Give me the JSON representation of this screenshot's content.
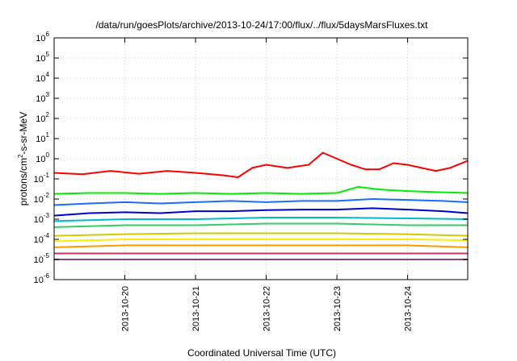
{
  "chart_data": {
    "type": "line",
    "title": "/data/run/goesPlots/archive/2013-10-24/17:00/flux/../flux/5daysMarsFluxes.txt",
    "xlabel": "Coordinated Universal Time (UTC)",
    "ylabel_parts": [
      "protons/cm",
      "2",
      "-s-sr-MeV"
    ],
    "yscale": "log",
    "ylim": [
      1e-06,
      1000000.0
    ],
    "xlim": [
      0.0,
      5.85
    ],
    "x_ticks": [
      {
        "x": 1.0,
        "label": "2013-10-20"
      },
      {
        "x": 2.0,
        "label": "2013-10-21"
      },
      {
        "x": 3.0,
        "label": "2013-10-22"
      },
      {
        "x": 4.0,
        "label": "2013-10-23"
      },
      {
        "x": 5.0,
        "label": "2013-10-24"
      }
    ],
    "y_ticks": [
      {
        "exp": -6,
        "base": "10",
        "sup": "-6"
      },
      {
        "exp": -5,
        "base": "10",
        "sup": "-5"
      },
      {
        "exp": -4,
        "base": "10",
        "sup": "-4"
      },
      {
        "exp": -3,
        "base": "10",
        "sup": "-3"
      },
      {
        "exp": -2,
        "base": "10",
        "sup": "-2"
      },
      {
        "exp": -1,
        "base": "10",
        "sup": "-1"
      },
      {
        "exp": 0,
        "base": "10",
        "sup": "0"
      },
      {
        "exp": 1,
        "base": "10",
        "sup": "1"
      },
      {
        "exp": 2,
        "base": "10",
        "sup": "2"
      },
      {
        "exp": 3,
        "base": "10",
        "sup": "3"
      },
      {
        "exp": 4,
        "base": "10",
        "sup": "4"
      },
      {
        "exp": 5,
        "base": "10",
        "sup": "5"
      },
      {
        "exp": 6,
        "base": "10",
        "sup": "6"
      }
    ],
    "grid": true,
    "series": [
      {
        "color": "#ff0000",
        "x": [
          0.0,
          0.4,
          0.8,
          1.2,
          1.6,
          2.0,
          2.4,
          2.6,
          2.8,
          3.0,
          3.3,
          3.6,
          3.8,
          4.0,
          4.2,
          4.4,
          4.6,
          4.8,
          5.0,
          5.2,
          5.4,
          5.6,
          5.85
        ],
        "values": [
          0.2,
          0.17,
          0.25,
          0.18,
          0.25,
          0.2,
          0.15,
          0.12,
          0.35,
          0.5,
          0.35,
          0.5,
          2.0,
          1.0,
          0.5,
          0.3,
          0.3,
          0.6,
          0.5,
          0.35,
          0.25,
          0.35,
          0.8
        ]
      },
      {
        "color": "#00ee00",
        "x": [
          0.0,
          0.5,
          1.0,
          1.5,
          2.0,
          2.5,
          3.0,
          3.5,
          4.0,
          4.3,
          4.6,
          5.0,
          5.4,
          5.85
        ],
        "values": [
          0.018,
          0.02,
          0.02,
          0.018,
          0.02,
          0.018,
          0.02,
          0.018,
          0.02,
          0.04,
          0.03,
          0.025,
          0.022,
          0.02
        ]
      },
      {
        "color": "#1a6bff",
        "x": [
          0.0,
          0.5,
          1.0,
          1.5,
          2.0,
          2.5,
          3.0,
          3.5,
          4.0,
          4.5,
          5.0,
          5.5,
          5.85
        ],
        "values": [
          0.005,
          0.006,
          0.007,
          0.006,
          0.007,
          0.008,
          0.007,
          0.008,
          0.008,
          0.01,
          0.009,
          0.008,
          0.007
        ]
      },
      {
        "color": "#0000cc",
        "x": [
          0.0,
          0.5,
          1.0,
          1.5,
          2.0,
          2.5,
          3.0,
          3.5,
          4.0,
          4.5,
          5.0,
          5.5,
          5.85
        ],
        "values": [
          0.0015,
          0.002,
          0.0022,
          0.002,
          0.0025,
          0.0025,
          0.0028,
          0.003,
          0.003,
          0.0035,
          0.003,
          0.0025,
          0.002
        ]
      },
      {
        "color": "#00bbcc",
        "x": [
          0.0,
          1.0,
          2.0,
          3.0,
          4.0,
          5.0,
          5.85
        ],
        "values": [
          0.0008,
          0.001,
          0.001,
          0.0012,
          0.0012,
          0.0011,
          0.001
        ]
      },
      {
        "color": "#33cc66",
        "x": [
          0.0,
          1.0,
          2.0,
          3.0,
          4.0,
          5.0,
          5.85
        ],
        "values": [
          0.0004,
          0.0005,
          0.0005,
          0.0006,
          0.0006,
          0.0005,
          0.0005
        ]
      },
      {
        "color": "#cccc00",
        "x": [
          0.0,
          1.0,
          2.0,
          3.0,
          4.0,
          5.0,
          5.85
        ],
        "values": [
          0.00015,
          0.00018,
          0.0002,
          0.0002,
          0.0002,
          0.00018,
          0.00015
        ]
      },
      {
        "color": "#ffee00",
        "x": [
          0.0,
          1.0,
          2.0,
          3.0,
          4.0,
          5.0,
          5.85
        ],
        "values": [
          8e-05,
          0.0001,
          0.0001,
          0.0001,
          0.0001,
          0.0001,
          9e-05
        ]
      },
      {
        "color": "#ff9900",
        "x": [
          0.0,
          1.0,
          2.0,
          3.0,
          4.0,
          5.0,
          5.85
        ],
        "values": [
          4e-05,
          5e-05,
          5e-05,
          5e-05,
          5e-05,
          5e-05,
          4e-05
        ]
      },
      {
        "color": "#cc3366",
        "x": [
          0.0,
          1.0,
          2.0,
          3.0,
          4.0,
          5.0,
          5.85
        ],
        "values": [
          2e-05,
          2e-05,
          2e-05,
          2e-05,
          2e-05,
          2e-05,
          2e-05
        ]
      },
      {
        "color": "#884488",
        "x": [
          0.0,
          1.0,
          2.0,
          3.0,
          4.0,
          5.0,
          5.85
        ],
        "values": [
          1e-05,
          1e-05,
          1e-05,
          1e-05,
          1e-05,
          1e-05,
          1e-05
        ]
      }
    ]
  }
}
